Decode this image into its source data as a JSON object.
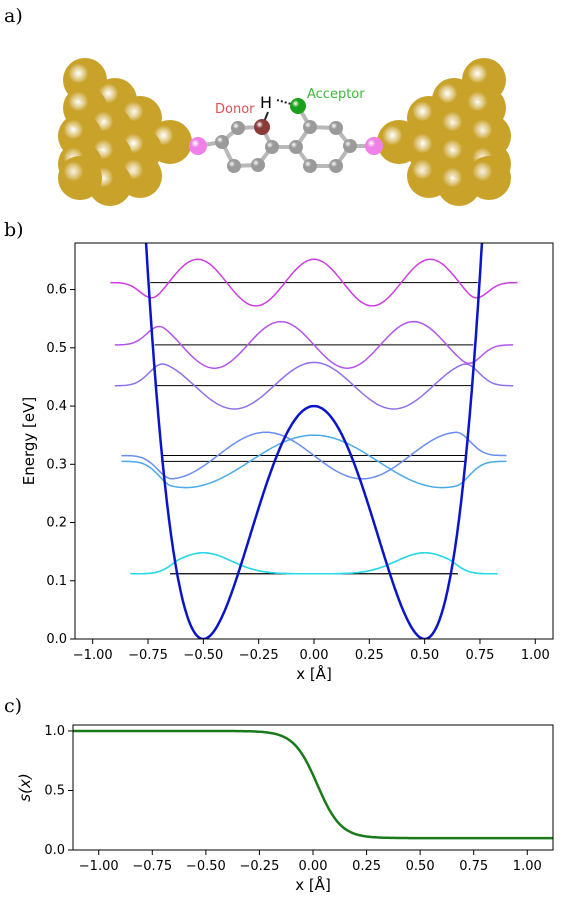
{
  "figure": {
    "panel_labels": [
      "a)",
      "b)",
      "c)"
    ]
  },
  "molecule": {
    "donor_label": "Donor",
    "acceptor_label": "Acceptor",
    "h_label": "H",
    "colors": {
      "gold": "#c9a22a",
      "carbon": "#9a9a9a",
      "donor_atom": "#8b3a3a",
      "acceptor_atom": "#1aa01a",
      "sulfur": "#f080e8",
      "donor_text": "#e25050",
      "acceptor_text": "#3cb83c"
    }
  },
  "chart_data": [
    {
      "type": "line",
      "name": "potential-and-wavefunctions",
      "xlabel": "x [Å]",
      "ylabel": "Energy [eV]",
      "xlim": [
        -1.08,
        1.08
      ],
      "ylim": [
        0.0,
        0.68
      ],
      "xticks": [
        -1.0,
        -0.75,
        -0.5,
        -0.25,
        0.0,
        0.25,
        0.5,
        0.75,
        1.0
      ],
      "xtick_labels": [
        "−1.00",
        "−0.75",
        "−0.50",
        "−0.25",
        "0.00",
        "0.25",
        "0.50",
        "0.75",
        "1.00"
      ],
      "yticks": [
        0.0,
        0.1,
        0.2,
        0.3,
        0.4,
        0.5,
        0.6
      ],
      "ytick_labels": [
        "0.0",
        "0.1",
        "0.2",
        "0.3",
        "0.4",
        "0.5",
        "0.6"
      ],
      "potential": {
        "form": "double-well",
        "barrier_height": 0.4,
        "minima": [
          -0.5,
          0.5
        ],
        "color": "#0a14c8"
      },
      "levels": [
        {
          "energy": 0.112,
          "x_range": [
            -0.65,
            0.65
          ],
          "color_a": "#2ad8e8",
          "color_b": "#2ad8e8",
          "amp": 0.04,
          "nodes": 0
        },
        {
          "energy": 0.112,
          "x_range": [
            -0.65,
            0.65
          ],
          "color_a": "#2ad8e8",
          "color_b": "#2ad8e8",
          "amp": 0.04,
          "nodes": 1
        },
        {
          "energy": 0.305,
          "x_range": [
            -0.69,
            0.69
          ],
          "color_a": "#4aaae8",
          "color_b": "#4aaae8",
          "amp": 0.045,
          "nodes": 2
        },
        {
          "energy": 0.315,
          "x_range": [
            -0.69,
            0.69
          ],
          "color_a": "#6a8ef0",
          "color_b": "#6a8ef0",
          "amp": 0.04,
          "nodes": 3
        },
        {
          "energy": 0.435,
          "x_range": [
            -0.72,
            0.72
          ],
          "color_a": "#9070e8",
          "color_b": "#9070e8",
          "amp": 0.04,
          "nodes": 4
        },
        {
          "energy": 0.505,
          "x_range": [
            -0.72,
            0.72
          ],
          "color_a": "#b455ea",
          "color_b": "#b455ea",
          "amp": 0.04,
          "nodes": 5
        },
        {
          "energy": 0.612,
          "x_range": [
            -0.74,
            0.74
          ],
          "color_a": "#cc3ee0",
          "color_b": "#cc3ee0",
          "amp": 0.04,
          "nodes": 6
        }
      ]
    },
    {
      "type": "line",
      "name": "switching-function",
      "xlabel": "x [Å]",
      "ylabel": "s(x)",
      "xlim": [
        -1.12,
        1.12
      ],
      "ylim": [
        0.0,
        1.05
      ],
      "xticks": [
        -1.0,
        -0.75,
        -0.5,
        -0.25,
        0.0,
        0.25,
        0.5,
        0.75,
        1.0
      ],
      "xtick_labels": [
        "−1.00",
        "−0.75",
        "−0.50",
        "−0.25",
        "0.00",
        "0.25",
        "0.50",
        "0.75",
        "1.00"
      ],
      "yticks": [
        0.0,
        0.5,
        1.0
      ],
      "ytick_labels": [
        "0.0",
        "0.5",
        "1.0"
      ],
      "series": [
        {
          "form": "sigmoid",
          "upper": 1.0,
          "lower": 0.1,
          "center": 0.02,
          "width": 0.055,
          "color": "#1a7a1a"
        }
      ]
    }
  ]
}
